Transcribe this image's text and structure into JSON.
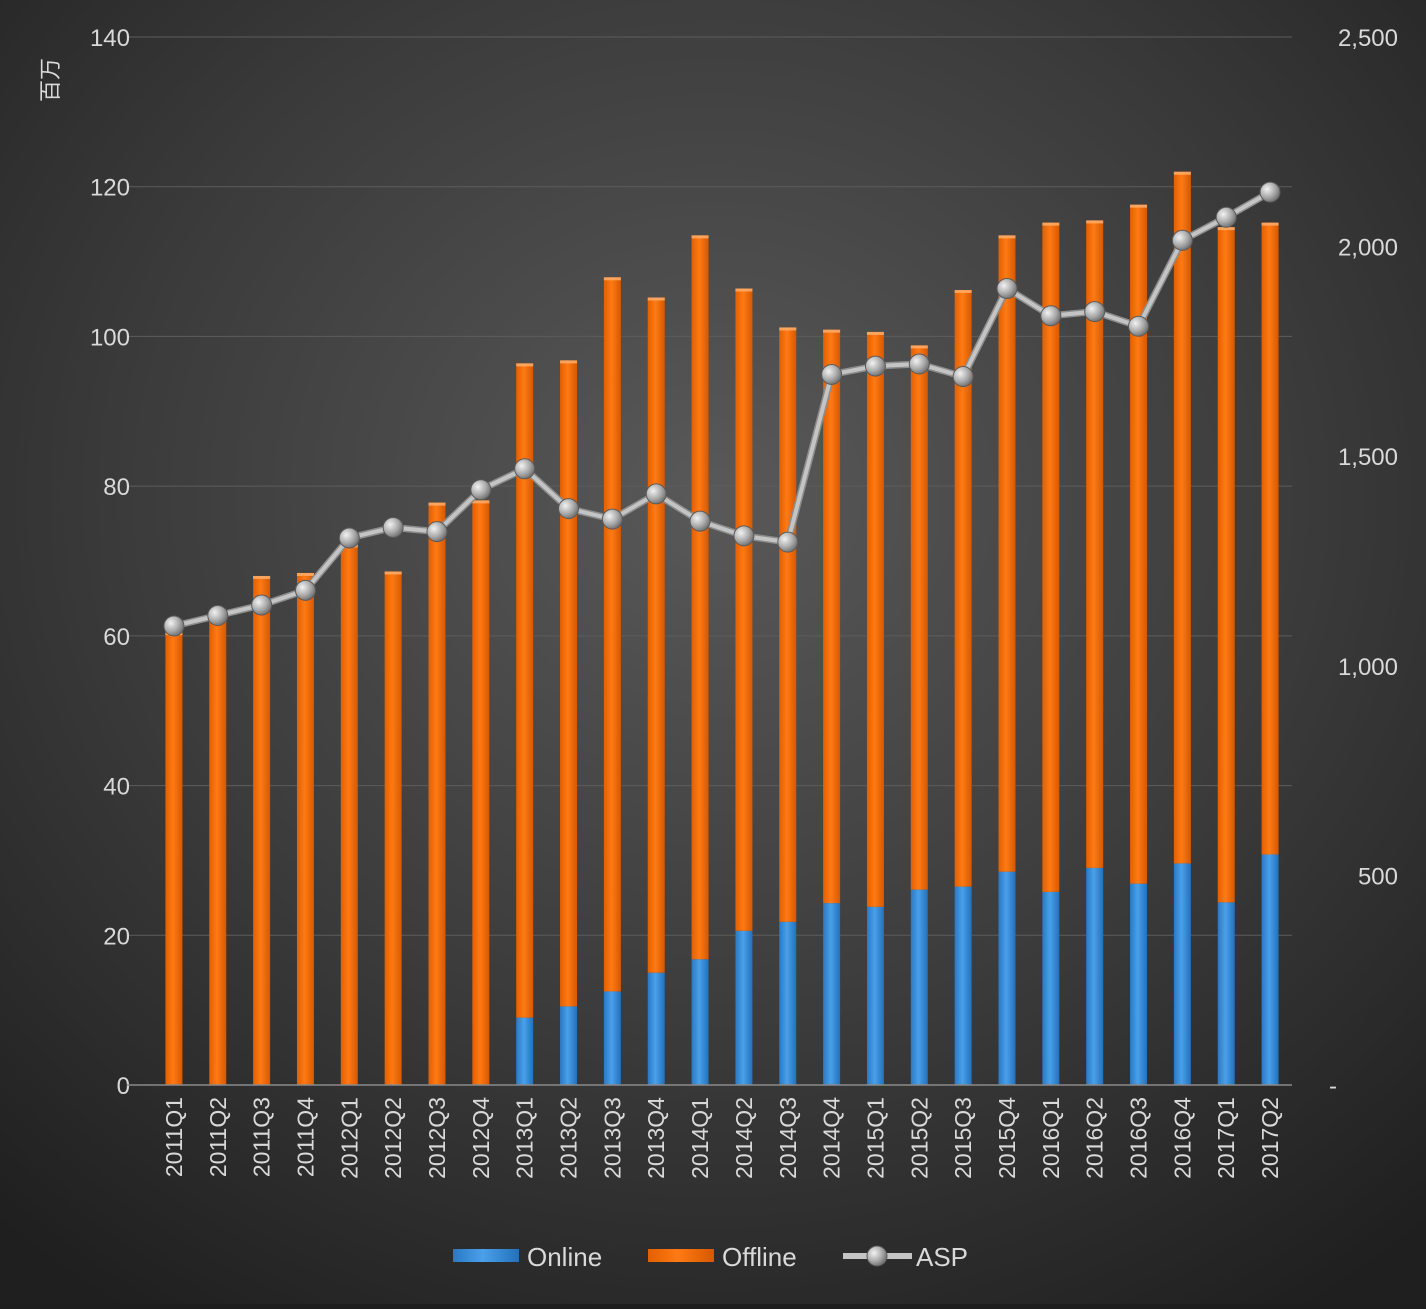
{
  "chart_data": {
    "type": "bar",
    "stacked": true,
    "y_unit_label": "百万",
    "categories": [
      "2011Q1",
      "2011Q2",
      "2011Q3",
      "2011Q4",
      "2012Q1",
      "2012Q2",
      "2012Q3",
      "2012Q4",
      "2013Q1",
      "2013Q2",
      "2013Q3",
      "2013Q4",
      "2014Q1",
      "2014Q2",
      "2014Q3",
      "2014Q4",
      "2015Q1",
      "2015Q2",
      "2015Q3",
      "2015Q4",
      "2016Q1",
      "2016Q2",
      "2016Q3",
      "2016Q4",
      "2017Q1",
      "2017Q2"
    ],
    "series": [
      {
        "name": "Online",
        "type": "bar",
        "axis": "left",
        "color": "#3a8fd9",
        "values": [
          0,
          0,
          0,
          0,
          0,
          0,
          0,
          0,
          9,
          10.5,
          12.5,
          15,
          16.8,
          20.6,
          21.8,
          24.3,
          23.8,
          26.1,
          26.5,
          28.5,
          25.8,
          29,
          26.9,
          29.6,
          24.4,
          30.8
        ]
      },
      {
        "name": "Offline",
        "type": "bar",
        "axis": "left",
        "color": "#ff7410",
        "values": [
          60.5,
          62.2,
          68,
          68.4,
          72.2,
          68.6,
          77.8,
          78.1,
          87.4,
          86.3,
          95.4,
          90.2,
          96.7,
          85.8,
          79.4,
          76.6,
          76.8,
          72.7,
          79.7,
          85.0,
          89.4,
          86.5,
          90.7,
          92.4,
          90.2,
          84.4
        ]
      },
      {
        "name": "ASP",
        "type": "line",
        "axis": "right",
        "color": "#b4b4b4",
        "values": [
          1095,
          1120,
          1145,
          1180,
          1305,
          1330,
          1320,
          1420,
          1470,
          1375,
          1350,
          1410,
          1345,
          1310,
          1295,
          1695,
          1715,
          1720,
          1690,
          1900,
          1835,
          1845,
          1810,
          2015,
          2070,
          2130
        ]
      }
    ],
    "y_left": {
      "min": 0,
      "max": 140,
      "ticks": [
        "0",
        "20",
        "40",
        "60",
        "80",
        "100",
        "120",
        "140"
      ]
    },
    "y_right": {
      "min": 0,
      "max": 2500,
      "ticks": [
        "-",
        "500",
        "1,000",
        "1,500",
        "2,000",
        "2,500"
      ]
    },
    "gridlines": true,
    "legend": {
      "position": "bottom",
      "items": [
        "Online",
        "Offline",
        "ASP"
      ]
    }
  }
}
